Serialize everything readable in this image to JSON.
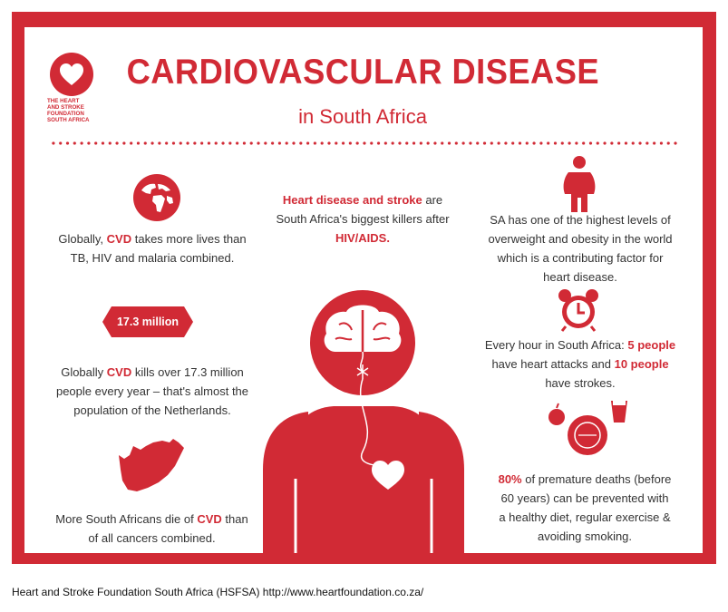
{
  "logo": {
    "icon": "heart-icon",
    "lines": [
      "THE HEART",
      "AND STROKE",
      "FOUNDATION",
      "SOUTH AFRICA"
    ]
  },
  "header": {
    "title": "CARDIOVASCULAR DISEASE",
    "subtitle": "in South Africa"
  },
  "left": {
    "globe_icon": "globe-icon",
    "fact1": {
      "a": "Globally, ",
      "b": "CVD",
      "c": " takes more lives than",
      "line2": "TB, HIV and malaria combined."
    },
    "badge": "17.3 million",
    "fact2": {
      "a": "Globally ",
      "b": "CVD",
      "c": " kills over 17.3 million",
      "line2": "people every year – that's almost the",
      "line3": "population of the Netherlands."
    },
    "map_icon": "south-africa-map-icon",
    "fact3": {
      "a": "More South Africans die of ",
      "b": "CVD",
      "c": " than",
      "line2": "of all cancers combined."
    }
  },
  "center": {
    "fact": {
      "a": "Heart disease and stroke",
      "b": " are",
      "line2": "South Africa's biggest killers after",
      "line3": "HIV/AIDS."
    },
    "figure_icon": "person-brain-heart-icon"
  },
  "right": {
    "person_icon": "overweight-person-icon",
    "fact1": {
      "line1": "SA has one of the highest levels of",
      "line2": "overweight and obesity in the world",
      "line3": "which is a contributing factor for",
      "line4": "heart disease."
    },
    "clock_icon": "alarm-clock-icon",
    "fact2": {
      "a": "Every hour in South Africa: ",
      "b": "5 people",
      "line2a": "have heart attacks and ",
      "line2b": "10 people",
      "line3": "have strokes."
    },
    "diet_icon": "plate-apple-drink-icon",
    "fact3": {
      "a": "80%",
      "b": " of premature deaths (before",
      "line2": "60 years) can be prevented with",
      "line3": "a healthy diet, regular exercise &",
      "line4": "avoiding smoking."
    }
  },
  "footer": {
    "text": "Heart and Stroke Foundation South Africa (HSFSA)  http://www.heartfoundation.co.za/"
  },
  "colors": {
    "brand_red": "#d12a35",
    "text": "#333333"
  }
}
